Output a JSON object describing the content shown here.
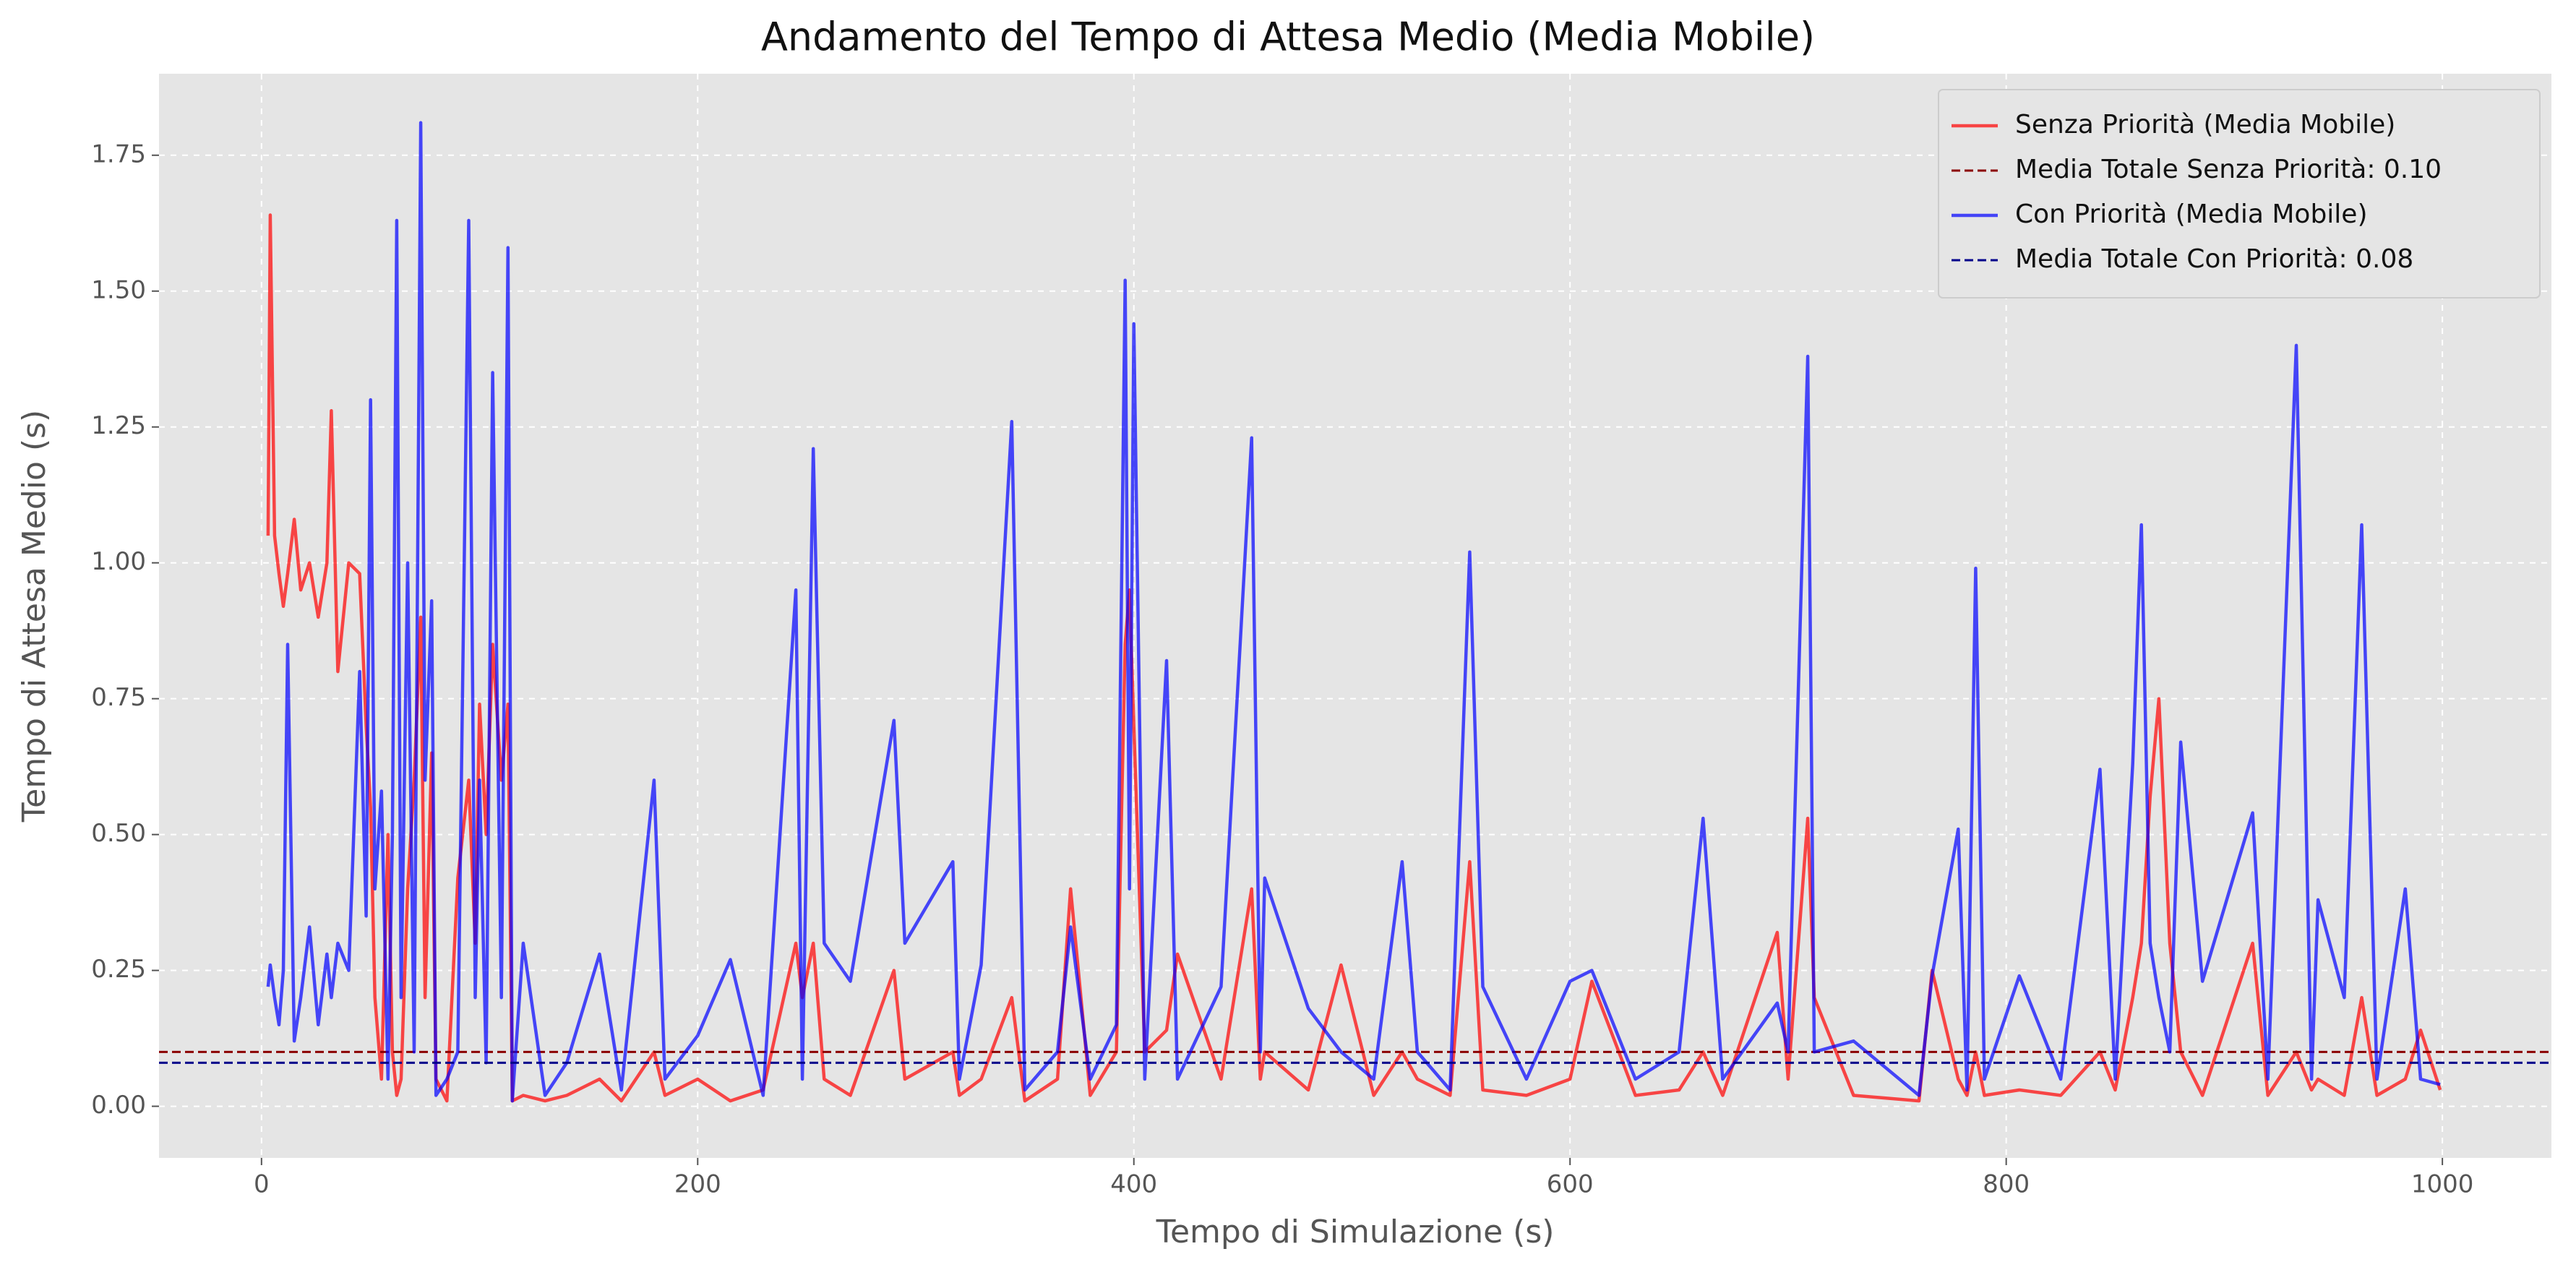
{
  "chart_data": {
    "type": "line",
    "title": "Andamento del Tempo di Attesa Medio (Media Mobile)",
    "x_label": "Tempo di Simulazione (s)",
    "y_label": "Tempo di Attesa Medio (s)",
    "x": [
      3,
      4,
      6,
      8,
      10,
      12,
      15,
      18,
      22,
      26,
      30,
      32,
      35,
      40,
      45,
      48,
      50,
      52,
      55,
      58,
      60,
      62,
      64,
      67,
      70,
      73,
      75,
      78,
      80,
      85,
      90,
      95,
      98,
      100,
      103,
      106,
      110,
      113,
      115,
      120,
      130,
      140,
      155,
      165,
      180,
      185,
      200,
      215,
      230,
      245,
      248,
      253,
      258,
      270,
      290,
      295,
      317,
      320,
      330,
      344,
      350,
      365,
      371,
      380,
      392,
      396,
      398,
      400,
      405,
      415,
      420,
      440,
      454,
      458,
      460,
      480,
      495,
      510,
      523,
      530,
      545,
      554,
      560,
      580,
      600,
      610,
      630,
      650,
      661,
      670,
      695,
      700,
      709,
      712,
      730,
      760,
      766,
      778,
      782,
      786,
      790,
      806,
      825,
      843,
      850,
      858,
      862,
      866,
      870,
      875,
      880,
      890,
      913,
      920,
      933,
      940,
      943,
      955,
      963,
      970,
      983,
      990,
      999
    ],
    "series": [
      {
        "name": "Senza Priorità (Media Mobile)",
        "color": "#ff0000",
        "values": [
          1.05,
          1.64,
          1.05,
          0.98,
          0.92,
          0.98,
          1.08,
          0.95,
          1.0,
          0.9,
          1.0,
          1.28,
          0.8,
          1.0,
          0.98,
          0.7,
          0.55,
          0.2,
          0.05,
          0.5,
          0.1,
          0.02,
          0.05,
          0.4,
          0.6,
          0.9,
          0.2,
          0.65,
          0.05,
          0.01,
          0.42,
          0.6,
          0.3,
          0.74,
          0.5,
          0.85,
          0.6,
          0.74,
          0.01,
          0.02,
          0.01,
          0.02,
          0.05,
          0.01,
          0.1,
          0.02,
          0.05,
          0.01,
          0.03,
          0.3,
          0.2,
          0.3,
          0.05,
          0.02,
          0.25,
          0.05,
          0.1,
          0.02,
          0.05,
          0.2,
          0.01,
          0.05,
          0.4,
          0.02,
          0.1,
          0.85,
          0.95,
          0.7,
          0.1,
          0.14,
          0.28,
          0.05,
          0.4,
          0.05,
          0.1,
          0.03,
          0.26,
          0.02,
          0.1,
          0.05,
          0.02,
          0.45,
          0.03,
          0.02,
          0.05,
          0.23,
          0.02,
          0.03,
          0.1,
          0.02,
          0.32,
          0.05,
          0.53,
          0.2,
          0.02,
          0.01,
          0.25,
          0.05,
          0.02,
          0.1,
          0.02,
          0.03,
          0.02,
          0.1,
          0.03,
          0.2,
          0.3,
          0.57,
          0.75,
          0.3,
          0.1,
          0.02,
          0.3,
          0.02,
          0.1,
          0.03,
          0.05,
          0.02,
          0.2,
          0.02,
          0.05,
          0.14,
          0.03
        ]
      },
      {
        "name": "Con Priorità (Media Mobile)",
        "color": "#0000ff",
        "values": [
          0.22,
          0.26,
          0.2,
          0.15,
          0.25,
          0.85,
          0.12,
          0.2,
          0.33,
          0.15,
          0.28,
          0.2,
          0.3,
          0.25,
          0.8,
          0.35,
          1.3,
          0.4,
          0.58,
          0.05,
          0.5,
          1.63,
          0.2,
          1.0,
          0.1,
          1.81,
          0.6,
          0.93,
          0.02,
          0.05,
          0.1,
          1.63,
          0.2,
          0.6,
          0.08,
          1.35,
          0.2,
          1.58,
          0.01,
          0.3,
          0.02,
          0.08,
          0.28,
          0.03,
          0.6,
          0.05,
          0.13,
          0.27,
          0.02,
          0.95,
          0.05,
          1.21,
          0.3,
          0.23,
          0.71,
          0.3,
          0.45,
          0.05,
          0.26,
          1.26,
          0.03,
          0.1,
          0.33,
          0.05,
          0.15,
          1.52,
          0.4,
          1.44,
          0.05,
          0.82,
          0.05,
          0.22,
          1.23,
          0.1,
          0.42,
          0.18,
          0.1,
          0.05,
          0.45,
          0.1,
          0.03,
          1.02,
          0.22,
          0.05,
          0.23,
          0.25,
          0.05,
          0.1,
          0.53,
          0.05,
          0.19,
          0.1,
          1.38,
          0.1,
          0.12,
          0.02,
          0.24,
          0.51,
          0.03,
          0.99,
          0.05,
          0.24,
          0.05,
          0.62,
          0.05,
          0.63,
          1.07,
          0.3,
          0.2,
          0.1,
          0.67,
          0.23,
          0.54,
          0.05,
          1.4,
          0.05,
          0.38,
          0.2,
          1.07,
          0.05,
          0.4,
          0.05,
          0.04
        ]
      }
    ],
    "hlines": [
      {
        "name": "Media Totale Senza Priorità: 0.10",
        "value": 0.1,
        "color": "#8b0000",
        "after_series": 0
      },
      {
        "name": "Media Totale Con Priorità: 0.08",
        "value": 0.08,
        "color": "#00008b",
        "after_series": 1
      }
    ],
    "xlim": [
      -47,
      1050
    ],
    "ylim": [
      -0.095,
      1.9
    ],
    "xticks": [
      0,
      200,
      400,
      600,
      800,
      1000
    ],
    "yticks": [
      {
        "value": 0,
        "label": "0.00"
      },
      {
        "value": 0.25,
        "label": "0.25"
      },
      {
        "value": 0.5,
        "label": "0.50"
      },
      {
        "value": 0.75,
        "label": "0.75"
      },
      {
        "value": 1,
        "label": "1.00"
      },
      {
        "value": 1.25,
        "label": "1.25"
      },
      {
        "value": 1.5,
        "label": "1.50"
      },
      {
        "value": 1.75,
        "label": "1.75"
      }
    ],
    "grid": true,
    "legend": "upper right"
  }
}
